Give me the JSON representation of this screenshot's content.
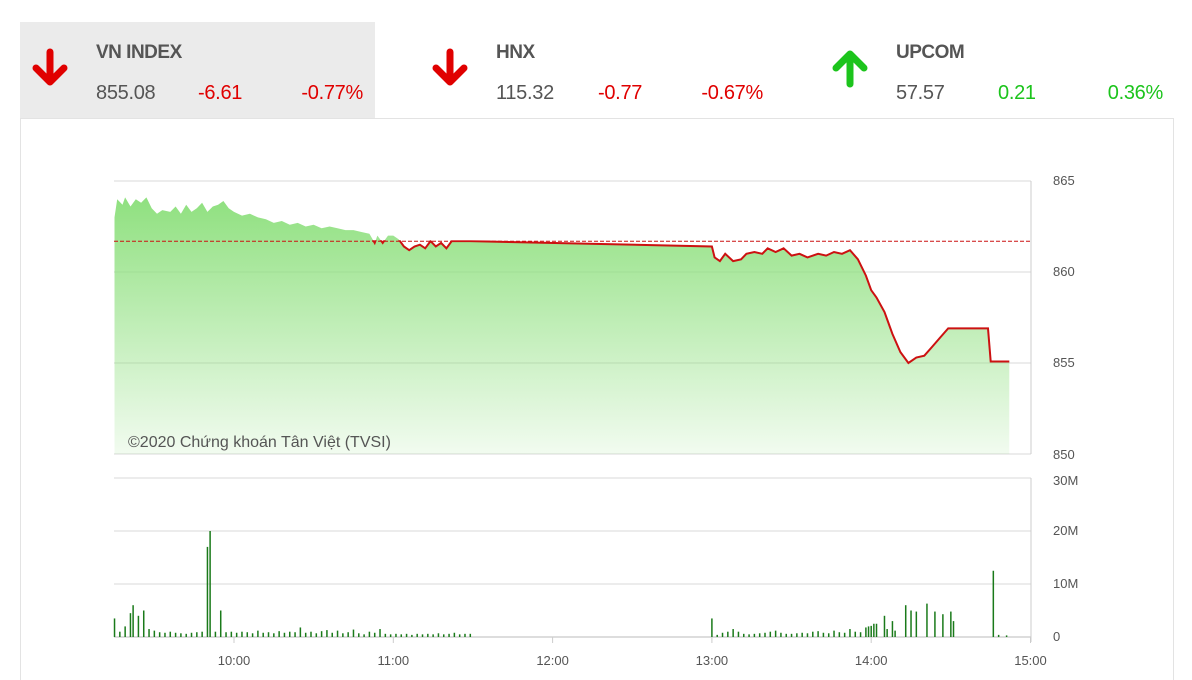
{
  "indices": [
    {
      "name": "VN INDEX",
      "value": "855.08",
      "change": "-6.61",
      "percent": "-0.77%",
      "direction": "down",
      "selected": true
    },
    {
      "name": "HNX",
      "value": "115.32",
      "change": "-0.77",
      "percent": "-0.67%",
      "direction": "down",
      "selected": false
    },
    {
      "name": "UPCOM",
      "value": "57.57",
      "change": "0.21",
      "percent": "0.36%",
      "direction": "up",
      "selected": false
    }
  ],
  "colors": {
    "down": "#e00000",
    "up": "#1cc41c",
    "line": "#cc1111",
    "fill": "#8fe07f",
    "volume": "#1a7a1a",
    "reference": "#cc1111"
  },
  "chart_data": [
    {
      "type": "area",
      "title": "",
      "copyright": "©2020 Chứng khoán Tân Việt (TVSI)",
      "ylim": [
        850,
        865
      ],
      "y_ticks": [
        "865",
        "860",
        "855",
        "850"
      ],
      "x_ticks": [
        "10:00",
        "11:00",
        "12:00",
        "13:00",
        "14:00",
        "15:00"
      ],
      "xlim": [
        "09:15",
        "15:00"
      ],
      "reference": 861.69,
      "grid": true,
      "points": [
        [
          "09:15",
          863.0
        ],
        [
          "09:16",
          864.0
        ],
        [
          "09:18",
          863.7
        ],
        [
          "09:19",
          864.1
        ],
        [
          "09:21",
          863.6
        ],
        [
          "09:23",
          864.0
        ],
        [
          "09:25",
          863.8
        ],
        [
          "09:27",
          864.1
        ],
        [
          "09:29",
          863.5
        ],
        [
          "09:31",
          863.2
        ],
        [
          "09:33",
          863.4
        ],
        [
          "09:36",
          863.3
        ],
        [
          "09:38",
          863.6
        ],
        [
          "09:40",
          863.2
        ],
        [
          "09:42",
          863.7
        ],
        [
          "09:44",
          863.3
        ],
        [
          "09:46",
          863.5
        ],
        [
          "09:48",
          863.8
        ],
        [
          "09:50",
          863.3
        ],
        [
          "09:52",
          863.6
        ],
        [
          "09:54",
          863.7
        ],
        [
          "09:56",
          863.9
        ],
        [
          "09:58",
          863.5
        ],
        [
          "10:00",
          863.3
        ],
        [
          "10:03",
          863.1
        ],
        [
          "10:06",
          863.2
        ],
        [
          "10:09",
          863.0
        ],
        [
          "10:12",
          862.9
        ],
        [
          "10:15",
          862.7
        ],
        [
          "10:18",
          862.8
        ],
        [
          "10:21",
          862.6
        ],
        [
          "10:24",
          862.7
        ],
        [
          "10:27",
          862.5
        ],
        [
          "10:30",
          862.6
        ],
        [
          "10:33",
          862.4
        ],
        [
          "10:36",
          862.5
        ],
        [
          "10:39",
          862.4
        ],
        [
          "10:42",
          862.3
        ],
        [
          "10:45",
          862.3
        ],
        [
          "10:48",
          862.2
        ],
        [
          "10:51",
          862.1
        ],
        [
          "10:53",
          861.6
        ],
        [
          "10:54",
          862.0
        ],
        [
          "10:56",
          861.6
        ],
        [
          "10:58",
          862.0
        ],
        [
          "11:00",
          862.0
        ],
        [
          "11:02",
          861.8
        ],
        [
          "11:04",
          861.4
        ],
        [
          "11:06",
          861.2
        ],
        [
          "11:08",
          861.4
        ],
        [
          "11:10",
          861.5
        ],
        [
          "11:12",
          861.3
        ],
        [
          "11:14",
          861.7
        ],
        [
          "11:16",
          861.4
        ],
        [
          "11:18",
          861.6
        ],
        [
          "11:20",
          861.3
        ],
        [
          "11:22",
          861.7
        ],
        [
          "11:25",
          861.7
        ],
        [
          "11:29",
          861.7
        ],
        [
          "13:00",
          861.4
        ],
        [
          "13:01",
          860.8
        ],
        [
          "13:03",
          860.6
        ],
        [
          "13:05",
          861.0
        ],
        [
          "13:08",
          860.6
        ],
        [
          "13:11",
          860.7
        ],
        [
          "13:13",
          861.0
        ],
        [
          "13:16",
          861.1
        ],
        [
          "13:19",
          861.0
        ],
        [
          "13:21",
          861.3
        ],
        [
          "13:24",
          861.1
        ],
        [
          "13:27",
          861.3
        ],
        [
          "13:30",
          860.9
        ],
        [
          "13:33",
          861.0
        ],
        [
          "13:36",
          860.8
        ],
        [
          "13:40",
          861.0
        ],
        [
          "13:43",
          860.9
        ],
        [
          "13:46",
          861.1
        ],
        [
          "13:49",
          861.0
        ],
        [
          "13:52",
          861.2
        ],
        [
          "13:55",
          860.7
        ],
        [
          "13:58",
          859.8
        ],
        [
          "14:00",
          859.0
        ],
        [
          "14:02",
          858.6
        ],
        [
          "14:05",
          857.8
        ],
        [
          "14:08",
          856.6
        ],
        [
          "14:11",
          855.6
        ],
        [
          "14:14",
          855.0
        ],
        [
          "14:17",
          855.3
        ],
        [
          "14:20",
          855.4
        ],
        [
          "14:23",
          855.9
        ],
        [
          "14:26",
          856.4
        ],
        [
          "14:29",
          856.9
        ],
        [
          "14:44",
          856.9
        ],
        [
          "14:45",
          855.08
        ],
        [
          "14:52",
          855.08
        ]
      ]
    },
    {
      "type": "bar",
      "title": "",
      "ylim": [
        0,
        30
      ],
      "unit": "M",
      "y_ticks": [
        "30M",
        "20M",
        "10M",
        "0"
      ],
      "x_ticks": [
        "10:00",
        "11:00",
        "12:00",
        "13:00",
        "14:00",
        "15:00"
      ],
      "bars": [
        [
          "09:15",
          3.5
        ],
        [
          "09:17",
          1.0
        ],
        [
          "09:19",
          2.0
        ],
        [
          "09:21",
          4.5
        ],
        [
          "09:22",
          6.0
        ],
        [
          "09:24",
          4.0
        ],
        [
          "09:26",
          5.0
        ],
        [
          "09:28",
          1.5
        ],
        [
          "09:30",
          1.2
        ],
        [
          "09:32",
          0.9
        ],
        [
          "09:34",
          0.8
        ],
        [
          "09:36",
          1.0
        ],
        [
          "09:38",
          0.8
        ],
        [
          "09:40",
          0.7
        ],
        [
          "09:42",
          0.6
        ],
        [
          "09:44",
          0.8
        ],
        [
          "09:46",
          0.9
        ],
        [
          "09:48",
          1.0
        ],
        [
          "09:50",
          17.0
        ],
        [
          "09:51",
          20.0
        ],
        [
          "09:53",
          1.0
        ],
        [
          "09:55",
          5.0
        ],
        [
          "09:57",
          0.9
        ],
        [
          "09:59",
          1.0
        ],
        [
          "10:01",
          0.8
        ],
        [
          "10:03",
          1.0
        ],
        [
          "10:05",
          0.9
        ],
        [
          "10:07",
          0.7
        ],
        [
          "10:09",
          1.2
        ],
        [
          "10:11",
          0.8
        ],
        [
          "10:13",
          0.9
        ],
        [
          "10:15",
          0.7
        ],
        [
          "10:17",
          1.1
        ],
        [
          "10:19",
          0.8
        ],
        [
          "10:21",
          1.0
        ],
        [
          "10:23",
          0.9
        ],
        [
          "10:25",
          1.8
        ],
        [
          "10:27",
          0.8
        ],
        [
          "10:29",
          1.0
        ],
        [
          "10:31",
          0.7
        ],
        [
          "10:33",
          1.1
        ],
        [
          "10:35",
          1.3
        ],
        [
          "10:37",
          0.8
        ],
        [
          "10:39",
          1.2
        ],
        [
          "10:41",
          0.7
        ],
        [
          "10:43",
          0.9
        ],
        [
          "10:45",
          1.4
        ],
        [
          "10:47",
          0.7
        ],
        [
          "10:49",
          0.5
        ],
        [
          "10:51",
          1.0
        ],
        [
          "10:53",
          0.8
        ],
        [
          "10:55",
          1.5
        ],
        [
          "10:57",
          0.6
        ],
        [
          "10:59",
          0.5
        ],
        [
          "11:01",
          0.6
        ],
        [
          "11:03",
          0.5
        ],
        [
          "11:05",
          0.6
        ],
        [
          "11:07",
          0.4
        ],
        [
          "11:09",
          0.6
        ],
        [
          "11:11",
          0.5
        ],
        [
          "11:13",
          0.6
        ],
        [
          "11:15",
          0.5
        ],
        [
          "11:17",
          0.7
        ],
        [
          "11:19",
          0.5
        ],
        [
          "11:21",
          0.6
        ],
        [
          "11:23",
          0.8
        ],
        [
          "11:25",
          0.5
        ],
        [
          "11:27",
          0.6
        ],
        [
          "11:29",
          0.6
        ],
        [
          "13:00",
          3.5
        ],
        [
          "13:02",
          0.4
        ],
        [
          "13:04",
          0.8
        ],
        [
          "13:06",
          1.0
        ],
        [
          "13:08",
          1.5
        ],
        [
          "13:10",
          1.0
        ],
        [
          "13:12",
          0.6
        ],
        [
          "13:14",
          0.5
        ],
        [
          "13:16",
          0.6
        ],
        [
          "13:18",
          0.7
        ],
        [
          "13:20",
          0.8
        ],
        [
          "13:22",
          1.0
        ],
        [
          "13:24",
          1.2
        ],
        [
          "13:26",
          0.8
        ],
        [
          "13:28",
          0.6
        ],
        [
          "13:30",
          0.6
        ],
        [
          "13:32",
          0.7
        ],
        [
          "13:34",
          0.8
        ],
        [
          "13:36",
          0.7
        ],
        [
          "13:38",
          1.0
        ],
        [
          "13:40",
          1.1
        ],
        [
          "13:42",
          0.8
        ],
        [
          "13:44",
          0.7
        ],
        [
          "13:46",
          1.2
        ],
        [
          "13:48",
          0.9
        ],
        [
          "13:50",
          0.8
        ],
        [
          "13:52",
          1.5
        ],
        [
          "13:54",
          1.0
        ],
        [
          "13:56",
          0.9
        ],
        [
          "13:58",
          1.8
        ],
        [
          "13:59",
          2.0
        ],
        [
          "14:00",
          2.1
        ],
        [
          "14:01",
          2.5
        ],
        [
          "14:02",
          2.5
        ],
        [
          "14:05",
          4.0
        ],
        [
          "14:06",
          1.5
        ],
        [
          "14:08",
          3.0
        ],
        [
          "14:09",
          1.2
        ],
        [
          "14:13",
          6.0
        ],
        [
          "14:15",
          5.0
        ],
        [
          "14:17",
          4.8
        ],
        [
          "14:21",
          6.3
        ],
        [
          "14:24",
          4.8
        ],
        [
          "14:27",
          4.3
        ],
        [
          "14:30",
          4.8
        ],
        [
          "14:31",
          3.0
        ],
        [
          "14:46",
          12.5
        ],
        [
          "14:48",
          0.4
        ],
        [
          "14:51",
          0.3
        ]
      ]
    }
  ]
}
